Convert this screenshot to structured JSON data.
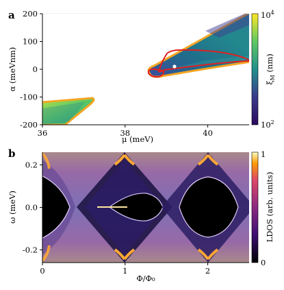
{
  "figure": {
    "panel_a_letter": "a",
    "panel_b_letter": "b"
  },
  "chart_data": [
    {
      "type": "heatmap",
      "panel": "a",
      "xlabel": "μ (meV)",
      "ylabel": "α (meVnm)",
      "xlim": [
        36,
        41
      ],
      "ylim": [
        -200,
        200
      ],
      "xticks": [
        36,
        38,
        40
      ],
      "yticks": [
        200,
        100,
        0,
        -100,
        -200
      ],
      "x_tick_labels": [
        "36",
        "38",
        "40"
      ],
      "y_tick_labels": [
        "200",
        "100",
        "0",
        "-100",
        "-200"
      ],
      "grid": true,
      "colorbar": {
        "label": "ξ_M (nm)",
        "scale": "log",
        "range": [
          100,
          10000
        ],
        "tick_labels": [
          "10^4",
          "10^2"
        ],
        "colormap": "viridis-like"
      },
      "regions": [
        {
          "name": "upper-right wedge",
          "boundary_color": "#f5a623",
          "tip": [
            38.7,
            -15
          ],
          "upper_edge_at_41": 200,
          "lower_edge_at_41": 40
        },
        {
          "name": "lower-left wedge",
          "boundary_color": "#f5a623",
          "tip": [
            37.2,
            -120
          ],
          "extends_to": [
            36,
            -200
          ]
        }
      ],
      "red_contours": [
        {
          "name": "small loop",
          "x": [
            38.65,
            39.1
          ],
          "y": [
            -35,
            -10
          ]
        },
        {
          "name": "large loop",
          "x": [
            38.8,
            41
          ],
          "y": [
            0,
            70
          ]
        }
      ],
      "marker": {
        "x": 39.2,
        "y": 10,
        "color": "#ffffff"
      }
    },
    {
      "type": "heatmap",
      "panel": "b",
      "xlabel": "Φ/Φ₀",
      "ylabel": "ω (meV)",
      "xlim": [
        0,
        2.5
      ],
      "ylim": [
        -0.26,
        0.26
      ],
      "xticks": [
        0,
        1,
        2
      ],
      "yticks": [
        0.2,
        0.0,
        -0.2
      ],
      "x_tick_labels": [
        "0",
        "1",
        "2"
      ],
      "y_tick_labels": [
        "0.2",
        "0.0",
        "-0.2"
      ],
      "grid": false,
      "colorbar": {
        "label": "LDOS (arb. units)",
        "scale": "linear",
        "range": [
          0,
          1
        ],
        "tick_labels": [
          "1",
          "0"
        ],
        "colormap": "inferno-like"
      },
      "gapped_lobes": [
        {
          "center": 0.0,
          "half_width_phi": 0.35,
          "gap_mev": 0.17
        },
        {
          "center": 1.0,
          "half_width_phi": 0.35,
          "gap_mev": 0.13
        },
        {
          "center": 2.0,
          "half_width_phi": 0.35,
          "gap_mev": 0.15
        }
      ],
      "zero_mode_line": {
        "phi_start": 0.68,
        "phi_end": 1.05,
        "omega": 0.0
      }
    }
  ]
}
